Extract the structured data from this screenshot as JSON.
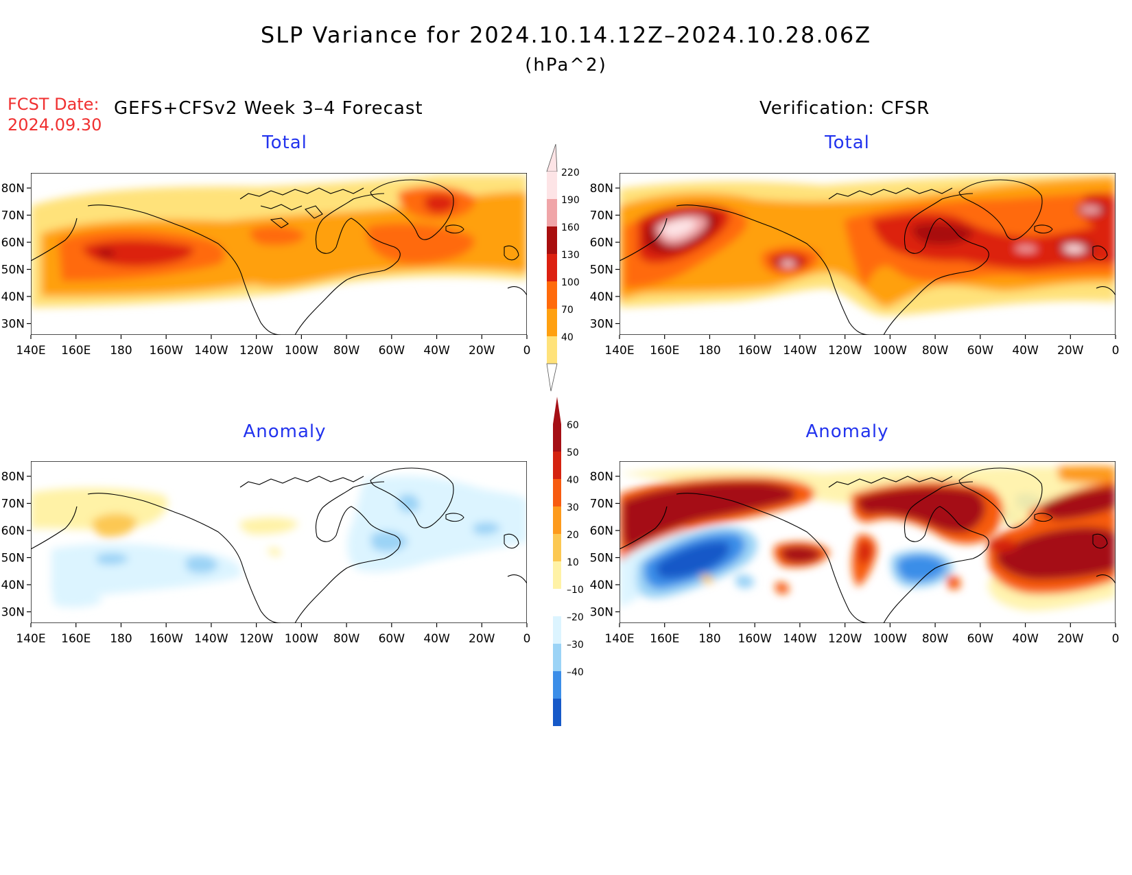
{
  "figure": {
    "title": "SLP Variance for 2024.10.14.12Z–2024.10.28.06Z",
    "units": "(hPa^2)",
    "fcst_label": "FCST Date:",
    "fcst_date": "2024.09.30",
    "left_header": "GEFS+CFSv2 Week 3–4 Forecast",
    "right_header": "Verification: CFSR"
  },
  "panels": {
    "fcst_total_title": "Total",
    "verif_total_title": "Total",
    "fcst_anom_title": "Anomaly",
    "verif_anom_title": "Anomaly"
  },
  "axes": {
    "lon_labels": [
      "140E",
      "160E",
      "180",
      "160W",
      "140W",
      "120W",
      "100W",
      "80W",
      "60W",
      "40W",
      "20W",
      "0"
    ],
    "lat_labels": [
      "80N",
      "70N",
      "60N",
      "50N",
      "40N",
      "30N"
    ]
  },
  "colorbars": {
    "total": {
      "labels": [
        "220",
        "190",
        "160",
        "130",
        "100",
        "70",
        "40"
      ],
      "colors": [
        "#fde4e6",
        "#f0a5a8",
        "#a80e0e",
        "#dc2010",
        "#ff6a0a",
        "#ffa010",
        "#ffe27a"
      ]
    },
    "anomaly": {
      "labels": [
        "60",
        "50",
        "40",
        "30",
        "20",
        "10",
        "–10",
        "–20",
        "–30",
        "–40"
      ],
      "colors": [
        "#a50f15",
        "#d42210",
        "#f75b10",
        "#fd9a1c",
        "#fcc852",
        "#fff2a6",
        "#ffffff",
        "#dcf4ff",
        "#9bd3f6",
        "#3b8ee8",
        "#1659c8"
      ]
    }
  }
}
